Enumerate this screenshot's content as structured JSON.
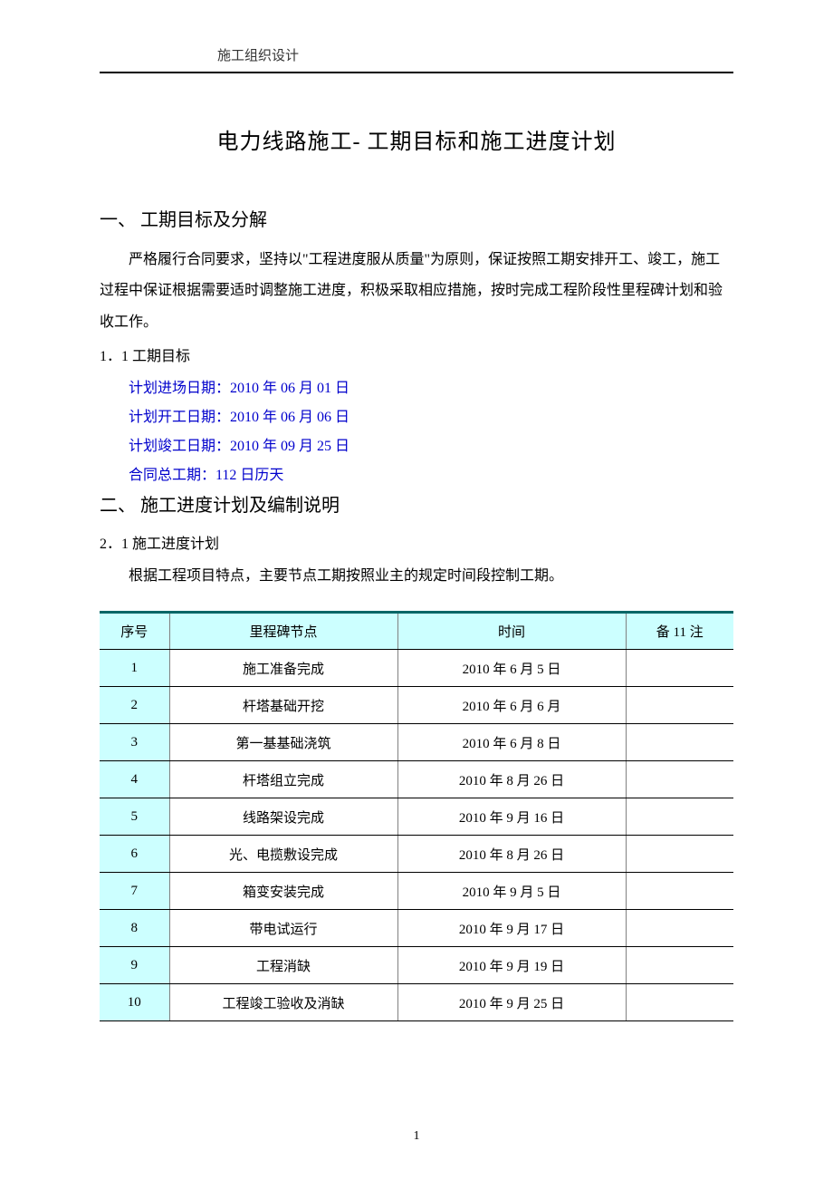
{
  "header": {
    "text": "施工组织设计"
  },
  "title": "电力线路施工- 工期目标和施工进度计划",
  "section1": {
    "heading": "一、  工期目标及分解",
    "paragraph": "严格履行合同要求，坚持以\"工程进度服从质量\"为原则，保证按照工期安排开工、竣工，施工过程中保证根据需要适时调整施工进度，积极采取相应措施，按时完成工程阶段性里程碑计划和验收工作。",
    "subheading": "1．1  工期目标",
    "dates": [
      "计划进场日期：2010 年 06 月 01 日",
      "计划开工日期：2010 年 06 月 06 日",
      "计划竣工日期：2010 年 09 月 25 日",
      "合同总工期：112 日历天"
    ]
  },
  "section2": {
    "heading": "二、  施工进度计划及编制说明",
    "subheading": "2．1   施工进度计划",
    "note": "根据工程项目特点，主要节点工期按照业主的规定时间段控制工期。"
  },
  "table": {
    "headers": {
      "seq": "序号",
      "milestone": "里程碑节点",
      "date": "时间",
      "remark": "备 11 注"
    },
    "rows": [
      {
        "seq": "1",
        "milestone": "施工准备完成",
        "date": "2010 年 6 月 5 日",
        "remark": ""
      },
      {
        "seq": "2",
        "milestone": "杆塔基础开挖",
        "date": "2010 年 6 月 6 月",
        "remark": ""
      },
      {
        "seq": "3",
        "milestone": "第一基基础浇筑",
        "date": "2010 年 6 月 8 日",
        "remark": ""
      },
      {
        "seq": "4",
        "milestone": "杆塔组立完成",
        "date": "2010 年 8 月 26 日",
        "remark": ""
      },
      {
        "seq": "5",
        "milestone": "线路架设完成",
        "date": "2010 年 9 月 16 日",
        "remark": ""
      },
      {
        "seq": "6",
        "milestone": "光、电揽敷设完成",
        "date": "2010 年 8 月 26 日",
        "remark": ""
      },
      {
        "seq": "7",
        "milestone": "箱变安装完成",
        "date": "2010 年 9 月 5 日",
        "remark": ""
      },
      {
        "seq": "8",
        "milestone": "带电试运行",
        "date": "2010 年 9 月 17 日",
        "remark": ""
      },
      {
        "seq": "9",
        "milestone": "工程消缺",
        "date": "2010 年 9 月 19 日",
        "remark": ""
      },
      {
        "seq": "10",
        "milestone": "工程竣工验收及消缺",
        "date": "2010 年 9 月 25 日",
        "remark": ""
      }
    ]
  },
  "pageNumber": "1"
}
